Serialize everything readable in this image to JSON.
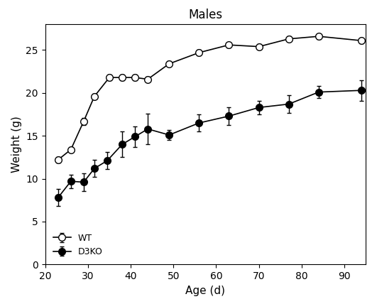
{
  "chart_data": {
    "type": "line",
    "title": "Males",
    "x_label": "Age (d)",
    "y_label": "Weight (g)",
    "xlim": [
      20,
      95
    ],
    "xticks": [
      20,
      30,
      40,
      50,
      60,
      70,
      80,
      90
    ],
    "ylim": [
      0,
      28
    ],
    "yticks": [
      0,
      5,
      10,
      15,
      20,
      25
    ],
    "legend": "lower left",
    "series": [
      {
        "name": "WT",
        "color": "#000000",
        "marker": "open_circle",
        "line_style": "solid",
        "x": [
          23,
          26,
          29,
          31.5,
          35,
          38,
          41,
          44,
          49,
          56,
          63,
          70,
          77,
          84,
          94
        ],
        "values": [
          12.2,
          13.4,
          16.7,
          19.6,
          21.8,
          21.8,
          21.8,
          21.6,
          23.4,
          24.7,
          25.6,
          25.4,
          26.3,
          26.6,
          26.1
        ],
        "errors": [
          0.3,
          0.3,
          0.4,
          0.3,
          0.3,
          0.3,
          0.3,
          0.3,
          0.3,
          0.3,
          0.3,
          0.3,
          0.3,
          0.3,
          0.3
        ]
      },
      {
        "name": "D3KO",
        "color": "#000000",
        "marker": "filled_circle",
        "line_style": "solid",
        "x": [
          23,
          26,
          29,
          31.5,
          34.5,
          38,
          41,
          44,
          49,
          56,
          63,
          70,
          77,
          84,
          94
        ],
        "values": [
          7.8,
          9.7,
          9.6,
          11.2,
          12.1,
          14.0,
          14.9,
          15.8,
          15.1,
          16.5,
          17.3,
          18.3,
          18.7,
          20.1,
          20.3
        ],
        "errors": [
          1.0,
          0.8,
          1.0,
          1.0,
          1.0,
          1.5,
          1.2,
          1.8,
          0.6,
          1.0,
          1.0,
          0.8,
          1.0,
          0.7,
          1.2
        ]
      }
    ]
  }
}
